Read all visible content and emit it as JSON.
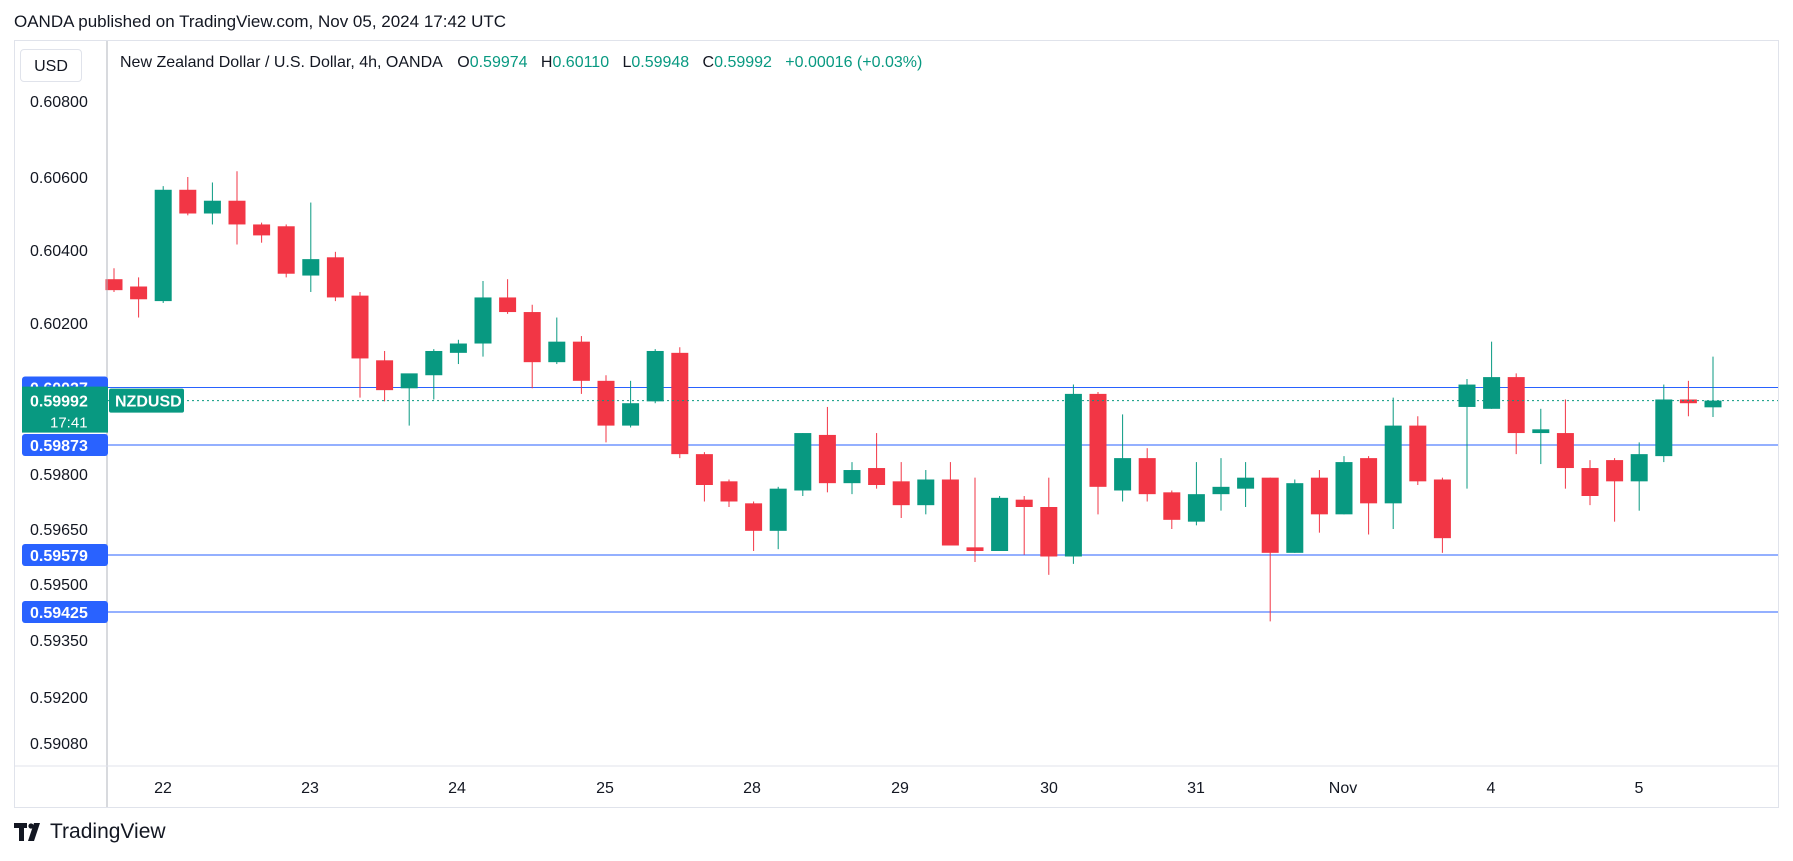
{
  "header": {
    "published": "OANDA published on TradingView.com, Nov 05, 2024 17:42 UTC"
  },
  "currency_label": "USD",
  "legend": {
    "symbol": "New Zealand Dollar / U.S. Dollar, 4h, OANDA",
    "o_label": "O",
    "o_value": "0.59974",
    "h_label": "H",
    "h_value": "0.60110",
    "l_label": "L",
    "l_value": "0.59948",
    "c_label": "C",
    "c_value": "0.59992",
    "change": "+0.00016 (+0.03%)"
  },
  "price_tag": {
    "price": "0.59992",
    "countdown": "17:41",
    "ticker": "NZDUSD",
    "color": "#089981"
  },
  "footer": {
    "brand": "TradingView"
  },
  "colors": {
    "up": "#089981",
    "down": "#f23645",
    "level": "#2962ff",
    "grid_text": "#131722"
  },
  "chart_data": {
    "type": "candlestick",
    "y_ticks": [
      "0.60800",
      "0.60600",
      "0.60400",
      "0.60200",
      "0.59800",
      "0.59650",
      "0.59500",
      "0.59350",
      "0.59200",
      "0.59080"
    ],
    "ylim": [
      0.59,
      0.609
    ],
    "x_labels": [
      "22",
      "23",
      "24",
      "25",
      "28",
      "29",
      "30",
      "31",
      "Nov",
      "4",
      "5"
    ],
    "levels": [
      {
        "price": 0.60027,
        "label": "0.60027"
      },
      {
        "price": 0.59873,
        "label": "0.59873"
      },
      {
        "price": 0.59579,
        "label": "0.59579"
      },
      {
        "price": 0.59425,
        "label": "0.59425"
      }
    ],
    "current_price": 0.59992,
    "candles": [
      {
        "o": 0.6032,
        "h": 0.6035,
        "l": 0.60285,
        "c": 0.6029
      },
      {
        "o": 0.603,
        "h": 0.60325,
        "l": 0.60215,
        "c": 0.60265
      },
      {
        "o": 0.6026,
        "h": 0.60575,
        "l": 0.60255,
        "c": 0.60565
      },
      {
        "o": 0.60565,
        "h": 0.606,
        "l": 0.60495,
        "c": 0.605
      },
      {
        "o": 0.605,
        "h": 0.60585,
        "l": 0.6047,
        "c": 0.60535
      },
      {
        "o": 0.60535,
        "h": 0.60615,
        "l": 0.60415,
        "c": 0.6047
      },
      {
        "o": 0.6047,
        "h": 0.60475,
        "l": 0.6042,
        "c": 0.6044
      },
      {
        "o": 0.60465,
        "h": 0.6047,
        "l": 0.60325,
        "c": 0.60335
      },
      {
        "o": 0.6033,
        "h": 0.6053,
        "l": 0.60285,
        "c": 0.60375
      },
      {
        "o": 0.6038,
        "h": 0.60395,
        "l": 0.6026,
        "c": 0.6027
      },
      {
        "o": 0.60275,
        "h": 0.60285,
        "l": 0.6,
        "c": 0.60105
      },
      {
        "o": 0.601,
        "h": 0.60125,
        "l": 0.5999,
        "c": 0.6002
      },
      {
        "o": 0.60025,
        "h": 0.6005,
        "l": 0.59925,
        "c": 0.60065
      },
      {
        "o": 0.6006,
        "h": 0.6013,
        "l": 0.59995,
        "c": 0.60125
      },
      {
        "o": 0.6012,
        "h": 0.60155,
        "l": 0.6009,
        "c": 0.60145
      },
      {
        "o": 0.60145,
        "h": 0.60315,
        "l": 0.6011,
        "c": 0.6027
      },
      {
        "o": 0.6027,
        "h": 0.6032,
        "l": 0.60225,
        "c": 0.6023
      },
      {
        "o": 0.6023,
        "h": 0.6025,
        "l": 0.60025,
        "c": 0.60095
      },
      {
        "o": 0.60095,
        "h": 0.60215,
        "l": 0.6009,
        "c": 0.6015
      },
      {
        "o": 0.6015,
        "h": 0.60165,
        "l": 0.6001,
        "c": 0.60045
      },
      {
        "o": 0.60045,
        "h": 0.6006,
        "l": 0.5988,
        "c": 0.59925
      },
      {
        "o": 0.59925,
        "h": 0.60045,
        "l": 0.5992,
        "c": 0.59985
      },
      {
        "o": 0.5999,
        "h": 0.6013,
        "l": 0.59985,
        "c": 0.60125
      },
      {
        "o": 0.6012,
        "h": 0.60135,
        "l": 0.5984,
        "c": 0.5985
      },
      {
        "o": 0.5985,
        "h": 0.59855,
        "l": 0.59725,
        "c": 0.5977
      },
      {
        "o": 0.5978,
        "h": 0.59785,
        "l": 0.5971,
        "c": 0.59725
      },
      {
        "o": 0.5972,
        "h": 0.59725,
        "l": 0.5959,
        "c": 0.59645
      },
      {
        "o": 0.59645,
        "h": 0.59765,
        "l": 0.59595,
        "c": 0.5976
      },
      {
        "o": 0.59755,
        "h": 0.59905,
        "l": 0.5974,
        "c": 0.59905
      },
      {
        "o": 0.599,
        "h": 0.59975,
        "l": 0.5975,
        "c": 0.59775
      },
      {
        "o": 0.59775,
        "h": 0.5983,
        "l": 0.59745,
        "c": 0.5981
      },
      {
        "o": 0.59815,
        "h": 0.59905,
        "l": 0.5976,
        "c": 0.5977
      },
      {
        "o": 0.5978,
        "h": 0.5983,
        "l": 0.5968,
        "c": 0.59715
      },
      {
        "o": 0.59715,
        "h": 0.5981,
        "l": 0.5969,
        "c": 0.59785
      },
      {
        "o": 0.59785,
        "h": 0.5983,
        "l": 0.5961,
        "c": 0.59605
      },
      {
        "o": 0.596,
        "h": 0.5979,
        "l": 0.5956,
        "c": 0.5959
      },
      {
        "o": 0.5959,
        "h": 0.5974,
        "l": 0.5959,
        "c": 0.59735
      },
      {
        "o": 0.5973,
        "h": 0.5974,
        "l": 0.5958,
        "c": 0.5971
      },
      {
        "o": 0.5971,
        "h": 0.5979,
        "l": 0.59525,
        "c": 0.59575
      },
      {
        "o": 0.59575,
        "h": 0.60035,
        "l": 0.59555,
        "c": 0.6001
      },
      {
        "o": 0.6001,
        "h": 0.60015,
        "l": 0.5969,
        "c": 0.59765
      },
      {
        "o": 0.59755,
        "h": 0.59955,
        "l": 0.59725,
        "c": 0.5984
      },
      {
        "o": 0.5984,
        "h": 0.59865,
        "l": 0.59725,
        "c": 0.59745
      },
      {
        "o": 0.5975,
        "h": 0.59755,
        "l": 0.5965,
        "c": 0.59675
      },
      {
        "o": 0.5967,
        "h": 0.5983,
        "l": 0.5966,
        "c": 0.59745
      },
      {
        "o": 0.59745,
        "h": 0.5984,
        "l": 0.597,
        "c": 0.59765
      },
      {
        "o": 0.5976,
        "h": 0.5983,
        "l": 0.5971,
        "c": 0.5979
      },
      {
        "o": 0.5979,
        "h": 0.5979,
        "l": 0.594,
        "c": 0.59585
      },
      {
        "o": 0.59585,
        "h": 0.59785,
        "l": 0.59585,
        "c": 0.59775
      },
      {
        "o": 0.5979,
        "h": 0.5981,
        "l": 0.5964,
        "c": 0.5969
      },
      {
        "o": 0.5969,
        "h": 0.59845,
        "l": 0.5969,
        "c": 0.5983
      },
      {
        "o": 0.5984,
        "h": 0.59845,
        "l": 0.59635,
        "c": 0.5972
      },
      {
        "o": 0.5972,
        "h": 0.6,
        "l": 0.5965,
        "c": 0.59925
      },
      {
        "o": 0.59925,
        "h": 0.5995,
        "l": 0.5977,
        "c": 0.5978
      },
      {
        "o": 0.59785,
        "h": 0.5979,
        "l": 0.59585,
        "c": 0.59625
      },
      {
        "o": 0.59975,
        "h": 0.6005,
        "l": 0.5976,
        "c": 0.60035
      },
      {
        "o": 0.5997,
        "h": 0.6015,
        "l": 0.5997,
        "c": 0.60055
      },
      {
        "o": 0.60055,
        "h": 0.60065,
        "l": 0.5985,
        "c": 0.59905
      },
      {
        "o": 0.59905,
        "h": 0.5997,
        "l": 0.59825,
        "c": 0.59915
      },
      {
        "o": 0.59905,
        "h": 0.59995,
        "l": 0.5976,
        "c": 0.59815
      },
      {
        "o": 0.59815,
        "h": 0.59835,
        "l": 0.59715,
        "c": 0.5974
      },
      {
        "o": 0.59835,
        "h": 0.5984,
        "l": 0.5967,
        "c": 0.5978
      },
      {
        "o": 0.5978,
        "h": 0.5988,
        "l": 0.597,
        "c": 0.5985
      },
      {
        "o": 0.59845,
        "h": 0.60035,
        "l": 0.5983,
        "c": 0.59995
      },
      {
        "o": 0.59995,
        "h": 0.60045,
        "l": 0.5995,
        "c": 0.59985
      },
      {
        "o": 0.59974,
        "h": 0.6011,
        "l": 0.59948,
        "c": 0.59992
      }
    ]
  }
}
